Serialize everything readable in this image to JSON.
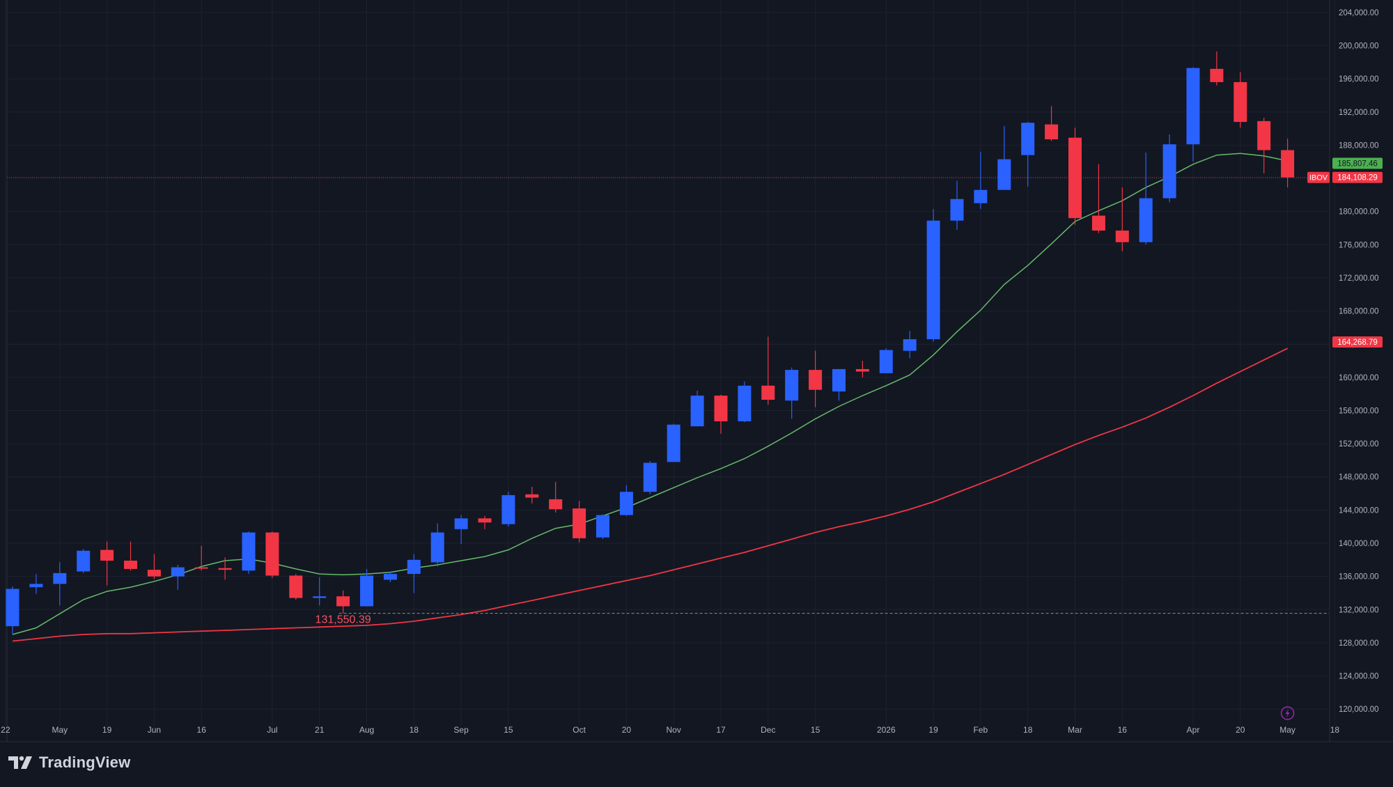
{
  "chart_data": {
    "type": "candlestick",
    "symbol": "IBOV",
    "price_axis": {
      "min": 118000,
      "max": 205500,
      "ticks": [
        120000,
        124000,
        128000,
        132000,
        136000,
        140000,
        144000,
        148000,
        152000,
        156000,
        160000,
        164000,
        168000,
        172000,
        176000,
        180000,
        184000,
        188000,
        192000,
        196000,
        200000,
        204000
      ],
      "tick_labels": [
        "120,000.00",
        "124,000.00",
        "128,000.00",
        "132,000.00",
        "136,000.00",
        "140,000.00",
        "144,000.00",
        "148,000.00",
        "152,000.00",
        "156,000.00",
        "160,000.00",
        "164,000.00",
        "168,000.00",
        "172,000.00",
        "176,000.00",
        "180,000.00",
        "184,000.00",
        "188,000.00",
        "192,000.00",
        "196,000.00",
        "200,000.00",
        "204,000.00"
      ]
    },
    "time_axis": {
      "labels": [
        {
          "i": -0.3,
          "text": "22"
        },
        {
          "i": 2,
          "text": "May"
        },
        {
          "i": 4,
          "text": "19"
        },
        {
          "i": 6,
          "text": "Jun"
        },
        {
          "i": 8,
          "text": "16"
        },
        {
          "i": 11,
          "text": "Jul"
        },
        {
          "i": 13,
          "text": "21"
        },
        {
          "i": 15,
          "text": "Aug"
        },
        {
          "i": 17,
          "text": "18"
        },
        {
          "i": 19,
          "text": "Sep"
        },
        {
          "i": 21,
          "text": "15"
        },
        {
          "i": 24,
          "text": "Oct"
        },
        {
          "i": 26,
          "text": "20"
        },
        {
          "i": 28,
          "text": "Nov"
        },
        {
          "i": 30,
          "text": "17"
        },
        {
          "i": 32,
          "text": "Dec"
        },
        {
          "i": 34,
          "text": "15"
        },
        {
          "i": 37,
          "text": "2026"
        },
        {
          "i": 39,
          "text": "19"
        },
        {
          "i": 41,
          "text": "Feb"
        },
        {
          "i": 43,
          "text": "18"
        },
        {
          "i": 45,
          "text": "Mar"
        },
        {
          "i": 47,
          "text": "16"
        },
        {
          "i": 50,
          "text": "Apr"
        },
        {
          "i": 52,
          "text": "20"
        },
        {
          "i": 54,
          "text": "May"
        },
        {
          "i": 56,
          "text": "18"
        }
      ]
    },
    "candles": [
      {
        "o": 130000,
        "h": 134800,
        "l": 129000,
        "c": 134500
      },
      {
        "o": 134700,
        "h": 136300,
        "l": 133900,
        "c": 135100
      },
      {
        "o": 135100,
        "h": 137700,
        "l": 132500,
        "c": 136400
      },
      {
        "o": 136600,
        "h": 139300,
        "l": 136400,
        "c": 139100
      },
      {
        "o": 139200,
        "h": 140200,
        "l": 134900,
        "c": 137900
      },
      {
        "o": 137900,
        "h": 140200,
        "l": 136700,
        "c": 136900
      },
      {
        "o": 136800,
        "h": 138700,
        "l": 135700,
        "c": 136000
      },
      {
        "o": 136000,
        "h": 137400,
        "l": 134400,
        "c": 137100
      },
      {
        "o": 137100,
        "h": 139700,
        "l": 136700,
        "c": 137000
      },
      {
        "o": 137000,
        "h": 138300,
        "l": 135600,
        "c": 136800
      },
      {
        "o": 136700,
        "h": 141400,
        "l": 136300,
        "c": 141300
      },
      {
        "o": 141300,
        "h": 141400,
        "l": 135800,
        "c": 136100
      },
      {
        "o": 136100,
        "h": 136300,
        "l": 133200,
        "c": 133400
      },
      {
        "o": 133400,
        "h": 135900,
        "l": 132500,
        "c": 133600
      },
      {
        "o": 133600,
        "h": 134300,
        "l": 131550,
        "c": 132400
      },
      {
        "o": 132400,
        "h": 136900,
        "l": 132400,
        "c": 136100
      },
      {
        "o": 135600,
        "h": 136600,
        "l": 135300,
        "c": 136300
      },
      {
        "o": 136300,
        "h": 138700,
        "l": 134000,
        "c": 138000
      },
      {
        "o": 137700,
        "h": 142400,
        "l": 137200,
        "c": 141300
      },
      {
        "o": 141700,
        "h": 143400,
        "l": 139900,
        "c": 143000
      },
      {
        "o": 143000,
        "h": 143300,
        "l": 141700,
        "c": 142500
      },
      {
        "o": 142300,
        "h": 146200,
        "l": 142000,
        "c": 145800
      },
      {
        "o": 145900,
        "h": 146800,
        "l": 144800,
        "c": 145500
      },
      {
        "o": 145300,
        "h": 147400,
        "l": 143700,
        "c": 144100
      },
      {
        "o": 144200,
        "h": 145100,
        "l": 140100,
        "c": 140600
      },
      {
        "o": 140700,
        "h": 143500,
        "l": 140500,
        "c": 143400
      },
      {
        "o": 143400,
        "h": 147000,
        "l": 143300,
        "c": 146200
      },
      {
        "o": 146200,
        "h": 149900,
        "l": 145900,
        "c": 149700
      },
      {
        "o": 149800,
        "h": 154400,
        "l": 149800,
        "c": 154300
      },
      {
        "o": 154100,
        "h": 158400,
        "l": 154100,
        "c": 157800
      },
      {
        "o": 157800,
        "h": 157900,
        "l": 153200,
        "c": 154700
      },
      {
        "o": 154700,
        "h": 159500,
        "l": 154600,
        "c": 159000
      },
      {
        "o": 159000,
        "h": 164900,
        "l": 156700,
        "c": 157300
      },
      {
        "o": 157200,
        "h": 161200,
        "l": 155000,
        "c": 160900
      },
      {
        "o": 160900,
        "h": 163200,
        "l": 156400,
        "c": 158500
      },
      {
        "o": 158300,
        "h": 161000,
        "l": 157200,
        "c": 161000
      },
      {
        "o": 161000,
        "h": 162000,
        "l": 160000,
        "c": 160700
      },
      {
        "o": 160500,
        "h": 163500,
        "l": 160500,
        "c": 163300
      },
      {
        "o": 163200,
        "h": 165600,
        "l": 162300,
        "c": 164600
      },
      {
        "o": 164600,
        "h": 180300,
        "l": 164300,
        "c": 178900
      },
      {
        "o": 178900,
        "h": 183700,
        "l": 177800,
        "c": 181500
      },
      {
        "o": 181000,
        "h": 187200,
        "l": 180300,
        "c": 182600
      },
      {
        "o": 182600,
        "h": 190300,
        "l": 182600,
        "c": 186300
      },
      {
        "o": 186800,
        "h": 190800,
        "l": 183000,
        "c": 190700
      },
      {
        "o": 190500,
        "h": 192700,
        "l": 188500,
        "c": 188700
      },
      {
        "o": 188900,
        "h": 190100,
        "l": 178400,
        "c": 179200
      },
      {
        "o": 179500,
        "h": 185700,
        "l": 177400,
        "c": 177700
      },
      {
        "o": 177700,
        "h": 182900,
        "l": 175200,
        "c": 176300
      },
      {
        "o": 176300,
        "h": 187100,
        "l": 176000,
        "c": 181600
      },
      {
        "o": 181600,
        "h": 189300,
        "l": 181100,
        "c": 188100
      },
      {
        "o": 188100,
        "h": 197400,
        "l": 186000,
        "c": 197300
      },
      {
        "o": 197200,
        "h": 199300,
        "l": 195200,
        "c": 195600
      },
      {
        "o": 195600,
        "h": 196800,
        "l": 190100,
        "c": 190800
      },
      {
        "o": 190900,
        "h": 191300,
        "l": 184600,
        "c": 187400
      },
      {
        "o": 187400,
        "h": 188800,
        "l": 182900,
        "c": 184108.29
      }
    ],
    "ma_fast": [
      129000,
      129800,
      131500,
      133200,
      134200,
      134700,
      135400,
      136200,
      137200,
      137900,
      138100,
      137600,
      136900,
      136300,
      136200,
      136300,
      136500,
      137000,
      137400,
      137900,
      138400,
      139200,
      140600,
      141800,
      142300,
      143300,
      144300,
      145500,
      146700,
      147900,
      149000,
      150200,
      151700,
      153300,
      155000,
      156500,
      157800,
      159000,
      160300,
      162700,
      165500,
      168100,
      171200,
      173500,
      176100,
      178800,
      180100,
      181300,
      182900,
      184200,
      185700,
      186800,
      187000,
      186700,
      186100
    ],
    "ma_slow": [
      128200,
      128500,
      128800,
      129000,
      129100,
      129100,
      129200,
      129300,
      129400,
      129500,
      129600,
      129700,
      129800,
      129900,
      130000,
      130100,
      130300,
      130600,
      131000,
      131400,
      131900,
      132500,
      133100,
      133700,
      134300,
      134900,
      135500,
      136100,
      136800,
      137500,
      138200,
      138900,
      139700,
      140500,
      141300,
      142000,
      142600,
      143300,
      144100,
      145000,
      146100,
      147200,
      148300,
      149500,
      150700,
      151900,
      153000,
      154000,
      155100,
      156400,
      157800,
      159300,
      160700,
      162100,
      163500
    ],
    "markers": {
      "low_label": "131,550.39",
      "low_value": 131550.39,
      "low_index": 14
    },
    "price_badges": [
      {
        "label": "185,807.46",
        "value": 185807.46,
        "color": "#4caf50",
        "text_color": "#131722"
      },
      {
        "symbol": "IBOV",
        "label": "184,108.29",
        "value": 184108.29,
        "color": "#f23645",
        "text_color": "#ffffff"
      },
      {
        "label": "164,268.79",
        "value": 164268.79,
        "color": "#f23645",
        "text_color": "#ffffff"
      }
    ],
    "colors": {
      "background": "#131722",
      "up": "#2962ff",
      "down": "#f23645",
      "ma_fast": "#66bb6a",
      "ma_slow": "#f23645",
      "grid": "#1e2230",
      "axis_text": "#b2b5be"
    },
    "grid": true
  },
  "footer": {
    "brand": "TradingView"
  }
}
